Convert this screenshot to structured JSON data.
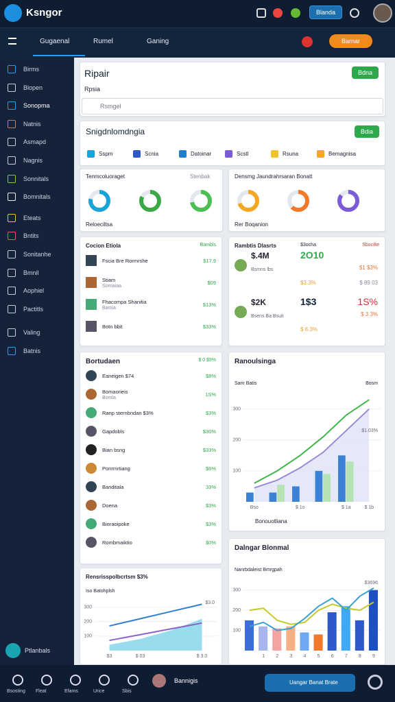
{
  "header": {
    "logo": "Ksngor",
    "button": "Blanda"
  },
  "tabs": [
    "Gugaenal",
    "Rumel",
    "Ganing"
  ],
  "cta": "Barnar",
  "sidebar": [
    "Birms",
    "Blopen",
    "Sonopma",
    "Natnis",
    "Asmapd",
    "Nagnis",
    "Sonnitals",
    "Bomnitals",
    "Eteats",
    "Bntits",
    "Sonitanhe",
    "Bmnil",
    "Aophiel",
    "Pactitls",
    "Valing",
    "Batnis"
  ],
  "sidebar_footer": "Ptlanbals",
  "repair": {
    "title": "Ripair",
    "label": "Rpsia",
    "search": "Rsmgel",
    "button": "Bdna"
  },
  "overview": {
    "title": "Snigdnlomdngia",
    "button": "Bdia",
    "chips": [
      "Sspm",
      "Scnia",
      "Datoinar",
      "Scstl",
      "Rsuna",
      "Bemagnisa"
    ],
    "cards": [
      {
        "title": "Tenmcoluoraget",
        "link": "Stenbak",
        "footer": "Reloeciltsa",
        "donuts": [
          {
            "value": 78,
            "color": "#1aa3d9"
          },
          {
            "value": 82,
            "color": "#3aa845"
          },
          {
            "value": 72,
            "color": "#4bbf4f"
          }
        ]
      },
      {
        "title": "Densmg Jaundrahrsaran Bonatt",
        "footer": "Rer Boqanion",
        "donuts": [
          {
            "value": 70,
            "color": "#f5a623"
          },
          {
            "value": 62,
            "color": "#f07a2a"
          },
          {
            "value": 85,
            "color": "#7b5cd6"
          }
        ]
      }
    ]
  },
  "lists": [
    {
      "title": "Cocion Etiola",
      "head": "Bambls",
      "rows": [
        {
          "name": "Fscia Bre Rormrshe",
          "value": "$17.9"
        },
        {
          "name": "Stiam",
          "sub": "Sornaiaa",
          "value": "$09"
        },
        {
          "name": "Fhacompa Shanitia",
          "sub": "Bamia",
          "value": "$13%"
        },
        {
          "name": "Botn bbit",
          "value": "$33%"
        }
      ]
    },
    {
      "title": "Bortudaen",
      "head": "$ 0 $9%",
      "rows": [
        {
          "name": "Eaneigen $74",
          "value": "$8%"
        },
        {
          "name": "Bomaorieis",
          "sub": "Bomla",
          "value": "1S%"
        },
        {
          "name": "Ranp sternbndan $3%",
          "value": "$3%"
        },
        {
          "name": "Gapdobls",
          "value": "$30%"
        },
        {
          "name": "Bian bsng",
          "value": "$33%"
        },
        {
          "name": "Ponrmrtiang",
          "value": "$6%"
        },
        {
          "name": "Banditala",
          "value": "33%"
        },
        {
          "name": "Doena",
          "value": "$3%"
        },
        {
          "name": "Bioraoipoke",
          "value": "$3%"
        },
        {
          "name": "Rombmaiktio",
          "value": "$0%"
        }
      ]
    }
  ],
  "stats": {
    "title": "Rambtis Dlasrts",
    "head": "$3ocha",
    "head2": "Sbocilte",
    "blocks": [
      {
        "big": "$.4M",
        "main": "2O10",
        "sub": "Bsmns lbs",
        "v1": "$1 $3%",
        "v2": "$3.3%",
        "v3": "$ 89 03"
      },
      {
        "big": "$2K",
        "main": "1$3",
        "alt": "1S%",
        "sub": "Bsens Ba Bsuit",
        "v1": "$ 3.3%",
        "v2": "$ 8.3%"
      }
    ]
  },
  "charts": [
    {
      "type": "combo",
      "title": "Ranoulsinga",
      "label": "Sanr Batis",
      "corner": "Bosm",
      "annotation": "$1.03%",
      "footer": "Bonouotliana",
      "ylim": [
        0,
        350
      ],
      "yticks": [
        100,
        200,
        300
      ],
      "categories": [
        "Bso",
        null,
        "$ 1o",
        null,
        "$ 1a",
        "$ 1b"
      ],
      "series": [
        {
          "kind": "area",
          "color": "#dfe2f4",
          "values": [
            45,
            70,
            110,
            160,
            230,
            300
          ]
        },
        {
          "kind": "bar",
          "color": "#3b82d6",
          "values": [
            30,
            30,
            50,
            100,
            150,
            null
          ]
        },
        {
          "kind": "bar",
          "color": "#b5e3b6",
          "values": [
            null,
            55,
            null,
            90,
            130,
            null
          ]
        },
        {
          "kind": "line",
          "color": "#3db64a",
          "values": [
            60,
            100,
            150,
            210,
            280,
            330
          ]
        },
        {
          "kind": "line",
          "color": "#9a8ad6",
          "values": [
            45,
            70,
            110,
            160,
            230,
            300
          ]
        }
      ]
    },
    {
      "type": "line",
      "title": "Rensrisspolbcrtsm $3%",
      "label": "Iso Batohplsh",
      "annotation": "$3.0",
      "ylim": [
        0,
        350
      ],
      "yticks": [
        100,
        200,
        300
      ],
      "categories": [
        "$3",
        "$ 03",
        null,
        "$ 3.0"
      ],
      "series": [
        {
          "kind": "area",
          "color": "#7fd3ea",
          "values": [
            40,
            80,
            140,
            220
          ]
        },
        {
          "kind": "line",
          "color": "#2f7fd0",
          "values": [
            170,
            220,
            270,
            320
          ]
        },
        {
          "kind": "line",
          "color": "#8a62c9",
          "values": [
            70,
            110,
            150,
            190
          ]
        }
      ]
    },
    {
      "type": "combo",
      "title": "Dalngar Blonmal",
      "label": "Nanrbdaleist Bmrgpah",
      "annotation": "$3696",
      "ylim": [
        0,
        350
      ],
      "yticks": [
        100,
        200,
        300
      ],
      "categories": [
        null,
        "1",
        "2",
        "3",
        "4",
        "5",
        "6",
        "7",
        "8",
        "9"
      ],
      "series": [
        {
          "kind": "bar",
          "color": "#3b6fd6",
          "colors": [
            "#3b6fd6",
            "#a9b6ee",
            "#f4a3a3",
            "#f4b183",
            "#6ea8f0",
            "#f07a2a",
            "#2f58c9",
            "#3fa9f5",
            "#2f58c9",
            "#1f4fc4"
          ],
          "values": [
            150,
            120,
            110,
            120,
            90,
            80,
            190,
            220,
            150,
            300
          ]
        },
        {
          "kind": "line",
          "color": "#c6c92b",
          "values": [
            200,
            210,
            150,
            130,
            140,
            200,
            230,
            210,
            200,
            240
          ]
        },
        {
          "kind": "line",
          "color": "#3aa0d0",
          "values": [
            120,
            140,
            100,
            110,
            160,
            220,
            260,
            200,
            270,
            310
          ]
        }
      ]
    }
  ],
  "bottom": {
    "items": [
      "Bsosting",
      "Fleat",
      "Efams",
      "Urice",
      "Sbis"
    ],
    "user": "Bannigis",
    "button": "Uangar Banat Brate"
  }
}
